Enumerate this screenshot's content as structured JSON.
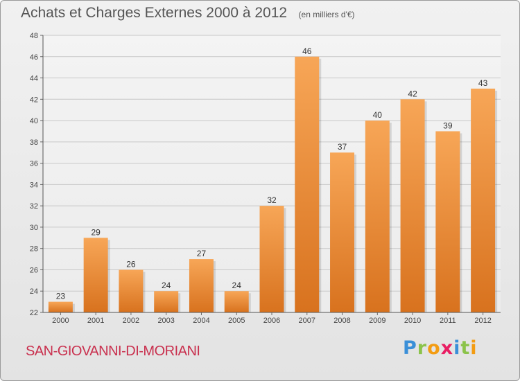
{
  "header": {
    "title": "Achats et Charges Externes 2000 à 2012",
    "subtitle": "(en milliers d'€)"
  },
  "footer": {
    "city": "SAN-GIOVANNI-DI-MORIANI",
    "brand": {
      "letters": [
        "P",
        "r",
        "o",
        "x",
        "i",
        "t",
        "i"
      ],
      "colors": [
        "#3a8fd8",
        "#8bc34a",
        "#f39c12",
        "#e91e63",
        "#3a8fd8",
        "#8bc34a",
        "#f39c12"
      ]
    }
  },
  "chart_data": {
    "type": "bar",
    "categories": [
      "2000",
      "2001",
      "2002",
      "2003",
      "2004",
      "2005",
      "2006",
      "2007",
      "2008",
      "2009",
      "2010",
      "2011",
      "2012"
    ],
    "values": [
      23,
      29,
      26,
      24,
      27,
      24,
      32,
      46,
      37,
      40,
      42,
      39,
      43
    ],
    "ylim": [
      22,
      48
    ],
    "yticks": [
      22,
      24,
      26,
      28,
      30,
      32,
      34,
      36,
      38,
      40,
      42,
      44,
      46,
      48
    ],
    "grid": true,
    "bar_colors": {
      "light": "#f7a657",
      "dark": "#d8721e"
    }
  }
}
